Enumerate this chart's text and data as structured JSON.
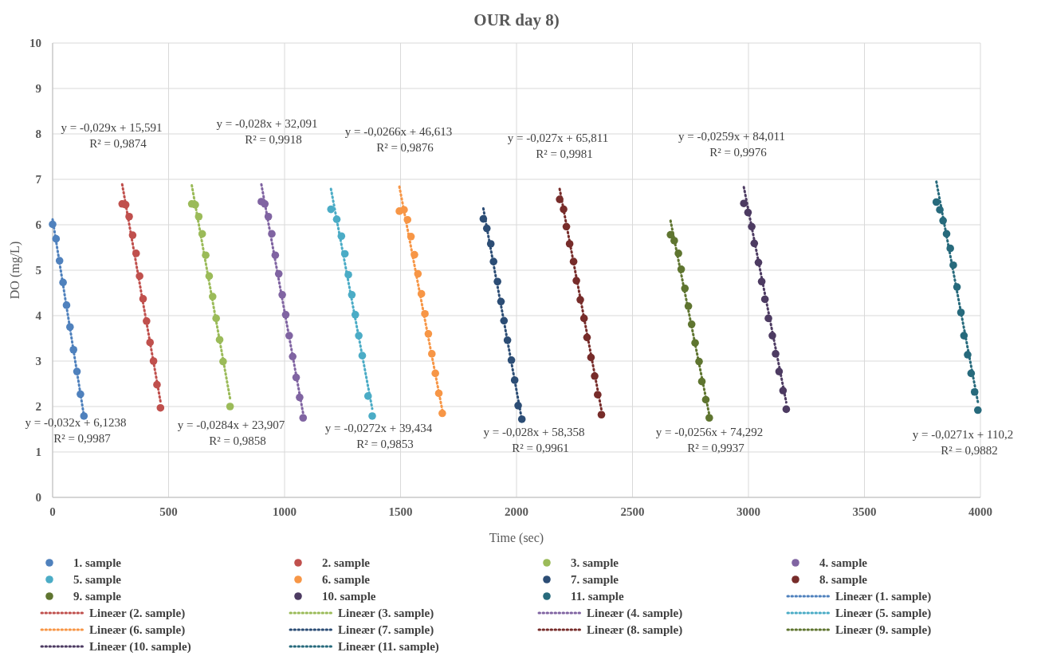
{
  "chart_data": {
    "type": "scatter",
    "title": "OUR day 8)",
    "xlabel": "Time (sec)",
    "ylabel": "DO (mg/L)",
    "xlim": [
      0,
      4000
    ],
    "xticks": [
      0,
      500,
      1000,
      1500,
      2000,
      2500,
      3000,
      3500,
      4000
    ],
    "ylim": [
      0,
      10
    ],
    "yticks": [
      0,
      1,
      2,
      3,
      4,
      5,
      6,
      7,
      8,
      9,
      10
    ],
    "grid": true,
    "legend": "bottom",
    "marker": "circle",
    "line_style": "dotted",
    "series": [
      {
        "name": "1. sample",
        "color": "#4f81bd",
        "x": [
          0,
          15,
          30,
          45,
          60,
          75,
          90,
          105,
          120,
          135
        ],
        "values": [
          6.01,
          5.69,
          5.21,
          4.73,
          4.23,
          3.75,
          3.25,
          2.77,
          2.27,
          1.79
        ]
      },
      {
        "name": "2. sample",
        "color": "#c0504d",
        "x": [
          300,
          315,
          330,
          345,
          360,
          375,
          390,
          405,
          420,
          435,
          450,
          465
        ],
        "values": [
          6.46,
          6.44,
          6.18,
          5.77,
          5.37,
          4.87,
          4.37,
          3.88,
          3.41,
          3.0,
          2.48,
          1.97
        ]
      },
      {
        "name": "3. sample",
        "color": "#9bbb59",
        "x": [
          600,
          615,
          630,
          645,
          660,
          675,
          690,
          705,
          720,
          735,
          765
        ],
        "values": [
          6.46,
          6.44,
          6.18,
          5.8,
          5.33,
          4.87,
          4.42,
          3.94,
          3.47,
          2.99,
          2.0
        ]
      },
      {
        "name": "4. sample",
        "color": "#8064a2",
        "x": [
          900,
          915,
          930,
          945,
          960,
          975,
          990,
          1005,
          1020,
          1035,
          1050,
          1065,
          1080
        ],
        "values": [
          6.51,
          6.46,
          6.18,
          5.8,
          5.33,
          4.92,
          4.46,
          4.02,
          3.56,
          3.1,
          2.64,
          2.2,
          1.75
        ]
      },
      {
        "name": "5. sample",
        "color": "#4bacc6",
        "x": [
          1200,
          1225,
          1245,
          1260,
          1275,
          1290,
          1305,
          1320,
          1335,
          1360,
          1378
        ],
        "values": [
          6.34,
          6.12,
          5.75,
          5.36,
          4.9,
          4.46,
          4.02,
          3.56,
          3.12,
          2.23,
          1.79
        ]
      },
      {
        "name": "6. sample",
        "color": "#f79646",
        "x": [
          1495,
          1515,
          1530,
          1545,
          1560,
          1575,
          1590,
          1605,
          1620,
          1635,
          1650,
          1665,
          1680
        ],
        "values": [
          6.3,
          6.33,
          6.11,
          5.74,
          5.34,
          4.92,
          4.48,
          4.04,
          3.6,
          3.16,
          2.73,
          2.29,
          1.85
        ]
      },
      {
        "name": "7. sample",
        "color": "#2c4d75",
        "x": [
          1857,
          1872,
          1889,
          1901,
          1918,
          1933,
          1946,
          1961,
          1978,
          1992,
          2007,
          2023
        ],
        "values": [
          6.13,
          5.92,
          5.58,
          5.19,
          4.75,
          4.31,
          3.89,
          3.46,
          3.02,
          2.58,
          2.02,
          1.72
        ]
      },
      {
        "name": "8. sample",
        "color": "#772c2a",
        "x": [
          2186,
          2203,
          2215,
          2229,
          2246,
          2258,
          2275,
          2291,
          2304,
          2321,
          2337,
          2350,
          2366
        ],
        "values": [
          6.56,
          6.34,
          5.96,
          5.58,
          5.19,
          4.77,
          4.35,
          3.94,
          3.52,
          3.08,
          2.67,
          2.26,
          1.82
        ]
      },
      {
        "name": "9. sample",
        "color": "#5f7530",
        "x": [
          2664,
          2680,
          2698,
          2710,
          2726,
          2741,
          2755,
          2770,
          2787,
          2799,
          2816,
          2831
        ],
        "values": [
          5.78,
          5.65,
          5.37,
          5.02,
          4.6,
          4.21,
          3.81,
          3.4,
          2.99,
          2.55,
          2.15,
          1.75
        ]
      },
      {
        "name": "10. sample",
        "color": "#4d3b62",
        "x": [
          2980,
          2998,
          3014,
          3025,
          3043,
          3057,
          3071,
          3086,
          3103,
          3117,
          3132,
          3149,
          3163
        ],
        "values": [
          6.47,
          6.27,
          5.96,
          5.59,
          5.17,
          4.75,
          4.36,
          3.94,
          3.56,
          3.16,
          2.77,
          2.35,
          1.94
        ]
      },
      {
        "name": "11. sample",
        "color": "#276a7c",
        "x": [
          3810,
          3825,
          3839,
          3854,
          3870,
          3883,
          3899,
          3916,
          3929,
          3945,
          3960,
          3975,
          3989
        ],
        "values": [
          6.5,
          6.33,
          6.09,
          5.8,
          5.48,
          5.11,
          4.63,
          4.07,
          3.56,
          3.14,
          2.73,
          2.32,
          1.92
        ]
      },
      {
        "name": "Lineær (1. sample)",
        "type": "line",
        "marker": "none",
        "color": "#4f81bd",
        "x": [
          0,
          135
        ],
        "values": [
          6.12,
          1.8
        ]
      },
      {
        "name": "Lineær (2. sample)",
        "type": "line",
        "marker": "none",
        "color": "#c0504d",
        "x": [
          300,
          465
        ],
        "values": [
          6.89,
          2.11
        ]
      },
      {
        "name": "Lineær (3. sample)",
        "type": "line",
        "marker": "none",
        "color": "#9bbb59",
        "x": [
          600,
          765
        ],
        "values": [
          6.87,
          2.18
        ]
      },
      {
        "name": "Lineær (4. sample)",
        "type": "line",
        "marker": "none",
        "color": "#8064a2",
        "x": [
          900,
          1080
        ],
        "values": [
          6.89,
          1.85
        ]
      },
      {
        "name": "Lineær (5. sample)",
        "type": "line",
        "marker": "none",
        "color": "#4bacc6",
        "x": [
          1200,
          1378
        ],
        "values": [
          6.79,
          1.95
        ]
      },
      {
        "name": "Lineær (6. sample)",
        "type": "line",
        "marker": "none",
        "color": "#f79646",
        "x": [
          1495,
          1680
        ],
        "values": [
          6.84,
          1.92
        ]
      },
      {
        "name": "Lineær (7. sample)",
        "type": "line",
        "marker": "none",
        "color": "#2c4d75",
        "x": [
          1857,
          2023
        ],
        "values": [
          6.36,
          1.71
        ]
      },
      {
        "name": "Lineær (8. sample)",
        "type": "line",
        "marker": "none",
        "color": "#772c2a",
        "x": [
          2186,
          2366
        ],
        "values": [
          6.79,
          1.93
        ]
      },
      {
        "name": "Lineær (9. sample)",
        "type": "line",
        "marker": "none",
        "color": "#5f7530",
        "x": [
          2664,
          2831
        ],
        "values": [
          6.09,
          1.82
        ]
      },
      {
        "name": "Lineær (10. sample)",
        "type": "line",
        "marker": "none",
        "color": "#4d3b62",
        "x": [
          2980,
          3163
        ],
        "values": [
          6.83,
          2.09
        ]
      },
      {
        "name": "Lineær (11. sample)",
        "type": "line",
        "marker": "none",
        "color": "#276a7c",
        "x": [
          3810,
          3989
        ],
        "values": [
          6.95,
          2.1
        ]
      }
    ],
    "annotations": [
      "y = -0,032x + 6,1238\nR² = 0,9987",
      "y = -0,029x + 15,591\nR² = 0,9874",
      "y = -0,0284x + 23,907\nR² = 0,9858",
      "y = -0,028x + 32,091\nR² = 0,9918",
      "y = -0,0272x + 39,434\nR² = 0,9853",
      "y = -0,0266x + 46,613\nR² = 0,9876",
      "y = -0,028x + 58,358\nR² = 0,9961",
      "y = -0,027x + 65,811\nR² = 0,9981",
      "y = -0,0256x + 74,292\nR² = 0,9937",
      "y = -0,0259x + 84,011\nR² = 0,9976",
      "y = -0,0271x + 110,2\nR² = 0,9882"
    ]
  }
}
